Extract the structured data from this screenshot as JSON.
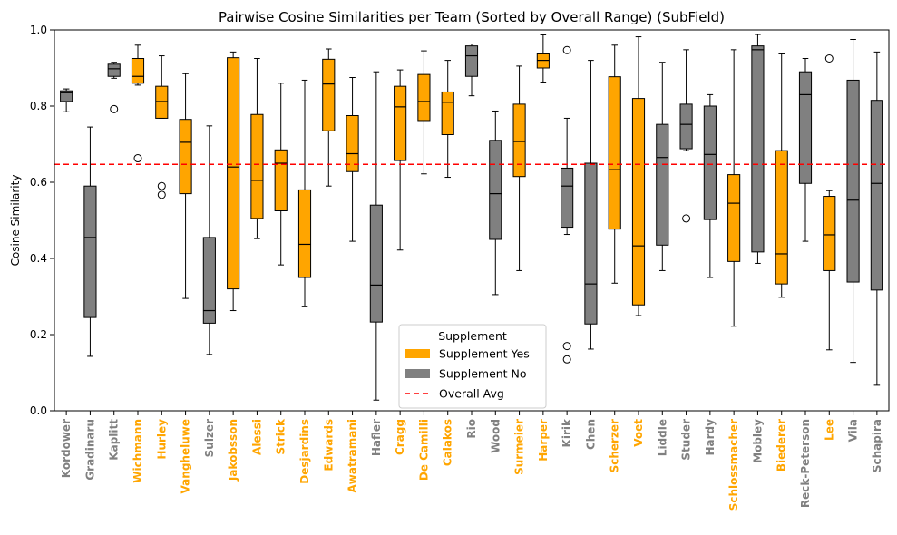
{
  "chart_data": {
    "type": "box",
    "title": "Pairwise Cosine Similarities per Team (Sorted by Overall Range) (SubField)",
    "xlabel": "",
    "ylabel": "Cosine Similarity",
    "ylim": [
      0.0,
      1.0
    ],
    "yticks": [
      "0.0",
      "0.2",
      "0.4",
      "0.6",
      "0.8",
      "1.0"
    ],
    "reference_line": {
      "label": "Overall Avg",
      "value": 0.647,
      "color": "#ff0000",
      "style": "dashed"
    },
    "colors": {
      "Yes": "#ffa500",
      "No": "#808080"
    },
    "legend": {
      "title": "Supplement",
      "placement": "lower center",
      "entries": [
        {
          "label": "Supplement Yes",
          "key": "Yes"
        },
        {
          "label": "Supplement No",
          "key": "No"
        },
        {
          "label": "Overall Avg",
          "key": "avg"
        }
      ]
    },
    "teams": [
      {
        "name": "Kordower",
        "supplement": "No",
        "whisker_low": 0.785,
        "q1": 0.812,
        "median": 0.835,
        "q3": 0.84,
        "whisker_high": 0.845,
        "outliers": []
      },
      {
        "name": "Gradinaru",
        "supplement": "No",
        "whisker_low": 0.143,
        "q1": 0.245,
        "median": 0.455,
        "q3": 0.59,
        "whisker_high": 0.745,
        "outliers": []
      },
      {
        "name": "Kaplitt",
        "supplement": "No",
        "whisker_low": 0.873,
        "q1": 0.878,
        "median": 0.898,
        "q3": 0.91,
        "whisker_high": 0.915,
        "outliers": [
          0.792
        ]
      },
      {
        "name": "Wichmann",
        "supplement": "Yes",
        "whisker_low": 0.855,
        "q1": 0.86,
        "median": 0.878,
        "q3": 0.925,
        "whisker_high": 0.96,
        "outliers": [
          0.663
        ]
      },
      {
        "name": "Hurley",
        "supplement": "Yes",
        "whisker_low": 0.768,
        "q1": 0.768,
        "median": 0.812,
        "q3": 0.852,
        "whisker_high": 0.932,
        "outliers": [
          0.59,
          0.567
        ]
      },
      {
        "name": "Vangheluwe",
        "supplement": "Yes",
        "whisker_low": 0.295,
        "q1": 0.57,
        "median": 0.705,
        "q3": 0.765,
        "whisker_high": 0.885,
        "outliers": []
      },
      {
        "name": "Sulzer",
        "supplement": "No",
        "whisker_low": 0.148,
        "q1": 0.23,
        "median": 0.263,
        "q3": 0.455,
        "whisker_high": 0.748,
        "outliers": []
      },
      {
        "name": "Jakobsson",
        "supplement": "Yes",
        "whisker_low": 0.263,
        "q1": 0.32,
        "median": 0.64,
        "q3": 0.927,
        "whisker_high": 0.942,
        "outliers": []
      },
      {
        "name": "Alessi",
        "supplement": "Yes",
        "whisker_low": 0.452,
        "q1": 0.505,
        "median": 0.605,
        "q3": 0.778,
        "whisker_high": 0.925,
        "outliers": []
      },
      {
        "name": "Strick",
        "supplement": "Yes",
        "whisker_low": 0.383,
        "q1": 0.525,
        "median": 0.65,
        "q3": 0.685,
        "whisker_high": 0.86,
        "outliers": []
      },
      {
        "name": "Desjardins",
        "supplement": "Yes",
        "whisker_low": 0.273,
        "q1": 0.35,
        "median": 0.437,
        "q3": 0.58,
        "whisker_high": 0.868,
        "outliers": []
      },
      {
        "name": "Edwards",
        "supplement": "Yes",
        "whisker_low": 0.59,
        "q1": 0.735,
        "median": 0.858,
        "q3": 0.923,
        "whisker_high": 0.95,
        "outliers": []
      },
      {
        "name": "Awatramani",
        "supplement": "Yes",
        "whisker_low": 0.445,
        "q1": 0.628,
        "median": 0.675,
        "q3": 0.775,
        "whisker_high": 0.875,
        "outliers": []
      },
      {
        "name": "Hafler",
        "supplement": "No",
        "whisker_low": 0.028,
        "q1": 0.233,
        "median": 0.33,
        "q3": 0.54,
        "whisker_high": 0.89,
        "outliers": []
      },
      {
        "name": "Cragg",
        "supplement": "Yes",
        "whisker_low": 0.422,
        "q1": 0.657,
        "median": 0.798,
        "q3": 0.852,
        "whisker_high": 0.895,
        "outliers": []
      },
      {
        "name": "De Camilli",
        "supplement": "Yes",
        "whisker_low": 0.622,
        "q1": 0.762,
        "median": 0.812,
        "q3": 0.883,
        "whisker_high": 0.945,
        "outliers": []
      },
      {
        "name": "Calakos",
        "supplement": "Yes",
        "whisker_low": 0.613,
        "q1": 0.725,
        "median": 0.81,
        "q3": 0.837,
        "whisker_high": 0.92,
        "outliers": []
      },
      {
        "name": "Rio",
        "supplement": "No",
        "whisker_low": 0.827,
        "q1": 0.878,
        "median": 0.932,
        "q3": 0.958,
        "whisker_high": 0.963,
        "outliers": []
      },
      {
        "name": "Wood",
        "supplement": "No",
        "whisker_low": 0.305,
        "q1": 0.45,
        "median": 0.57,
        "q3": 0.71,
        "whisker_high": 0.787,
        "outliers": []
      },
      {
        "name": "Surmeier",
        "supplement": "Yes",
        "whisker_low": 0.368,
        "q1": 0.615,
        "median": 0.707,
        "q3": 0.805,
        "whisker_high": 0.905,
        "outliers": []
      },
      {
        "name": "Harper",
        "supplement": "Yes",
        "whisker_low": 0.863,
        "q1": 0.9,
        "median": 0.92,
        "q3": 0.937,
        "whisker_high": 0.987,
        "outliers": []
      },
      {
        "name": "Kirik",
        "supplement": "No",
        "whisker_low": 0.463,
        "q1": 0.482,
        "median": 0.59,
        "q3": 0.637,
        "whisker_high": 0.768,
        "outliers": [
          0.947,
          0.17,
          0.135
        ]
      },
      {
        "name": "Chen",
        "supplement": "No",
        "whisker_low": 0.162,
        "q1": 0.228,
        "median": 0.333,
        "q3": 0.65,
        "whisker_high": 0.92,
        "outliers": []
      },
      {
        "name": "Scherzer",
        "supplement": "Yes",
        "whisker_low": 0.335,
        "q1": 0.477,
        "median": 0.633,
        "q3": 0.877,
        "whisker_high": 0.96,
        "outliers": []
      },
      {
        "name": "Voet",
        "supplement": "Yes",
        "whisker_low": 0.25,
        "q1": 0.278,
        "median": 0.433,
        "q3": 0.82,
        "whisker_high": 0.982,
        "outliers": []
      },
      {
        "name": "Liddle",
        "supplement": "No",
        "whisker_low": 0.368,
        "q1": 0.435,
        "median": 0.665,
        "q3": 0.752,
        "whisker_high": 0.915,
        "outliers": []
      },
      {
        "name": "Studer",
        "supplement": "No",
        "whisker_low": 0.683,
        "q1": 0.688,
        "median": 0.752,
        "q3": 0.805,
        "whisker_high": 0.948,
        "outliers": [
          0.505
        ]
      },
      {
        "name": "Hardy",
        "supplement": "No",
        "whisker_low": 0.35,
        "q1": 0.502,
        "median": 0.673,
        "q3": 0.8,
        "whisker_high": 0.83,
        "outliers": []
      },
      {
        "name": "Schlossmacher",
        "supplement": "Yes",
        "whisker_low": 0.222,
        "q1": 0.392,
        "median": 0.545,
        "q3": 0.62,
        "whisker_high": 0.948,
        "outliers": []
      },
      {
        "name": "Mobley",
        "supplement": "No",
        "whisker_low": 0.387,
        "q1": 0.417,
        "median": 0.948,
        "q3": 0.958,
        "whisker_high": 0.988,
        "outliers": []
      },
      {
        "name": "Biederer",
        "supplement": "Yes",
        "whisker_low": 0.298,
        "q1": 0.333,
        "median": 0.412,
        "q3": 0.683,
        "whisker_high": 0.937,
        "outliers": []
      },
      {
        "name": "Reck-Peterson",
        "supplement": "No",
        "whisker_low": 0.445,
        "q1": 0.597,
        "median": 0.83,
        "q3": 0.89,
        "whisker_high": 0.925,
        "outliers": []
      },
      {
        "name": "Lee",
        "supplement": "Yes",
        "whisker_low": 0.16,
        "q1": 0.368,
        "median": 0.462,
        "q3": 0.563,
        "whisker_high": 0.578,
        "outliers": [
          0.925
        ]
      },
      {
        "name": "Vila",
        "supplement": "No",
        "whisker_low": 0.127,
        "q1": 0.338,
        "median": 0.553,
        "q3": 0.868,
        "whisker_high": 0.975,
        "outliers": []
      },
      {
        "name": "Schapira",
        "supplement": "No",
        "whisker_low": 0.067,
        "q1": 0.317,
        "median": 0.597,
        "q3": 0.815,
        "whisker_high": 0.942,
        "outliers": []
      }
    ]
  }
}
